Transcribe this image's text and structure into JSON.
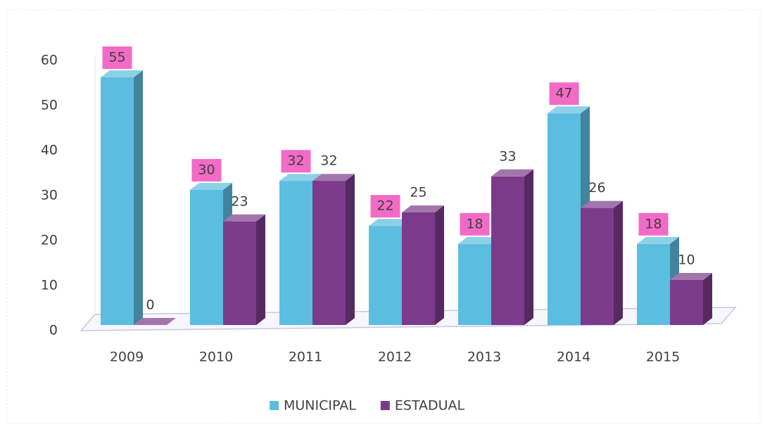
{
  "chart_data": {
    "type": "bar3d",
    "categories": [
      "2009",
      "2010",
      "2011",
      "2012",
      "2013",
      "2014",
      "2015"
    ],
    "series": [
      {
        "name": "MUNICIPAL",
        "color": "#5bbde0",
        "label_color": "#f26bc6",
        "values": [
          55,
          30,
          32,
          22,
          18,
          47,
          18
        ]
      },
      {
        "name": "ESTADUAL",
        "color": "#7b3a8a",
        "values": [
          0,
          23,
          32,
          25,
          33,
          26,
          10
        ]
      }
    ],
    "ylim": [
      0,
      60
    ],
    "yticks": [
      0,
      10,
      20,
      30,
      40,
      50,
      60
    ],
    "grid": false,
    "legend": "bottom"
  }
}
